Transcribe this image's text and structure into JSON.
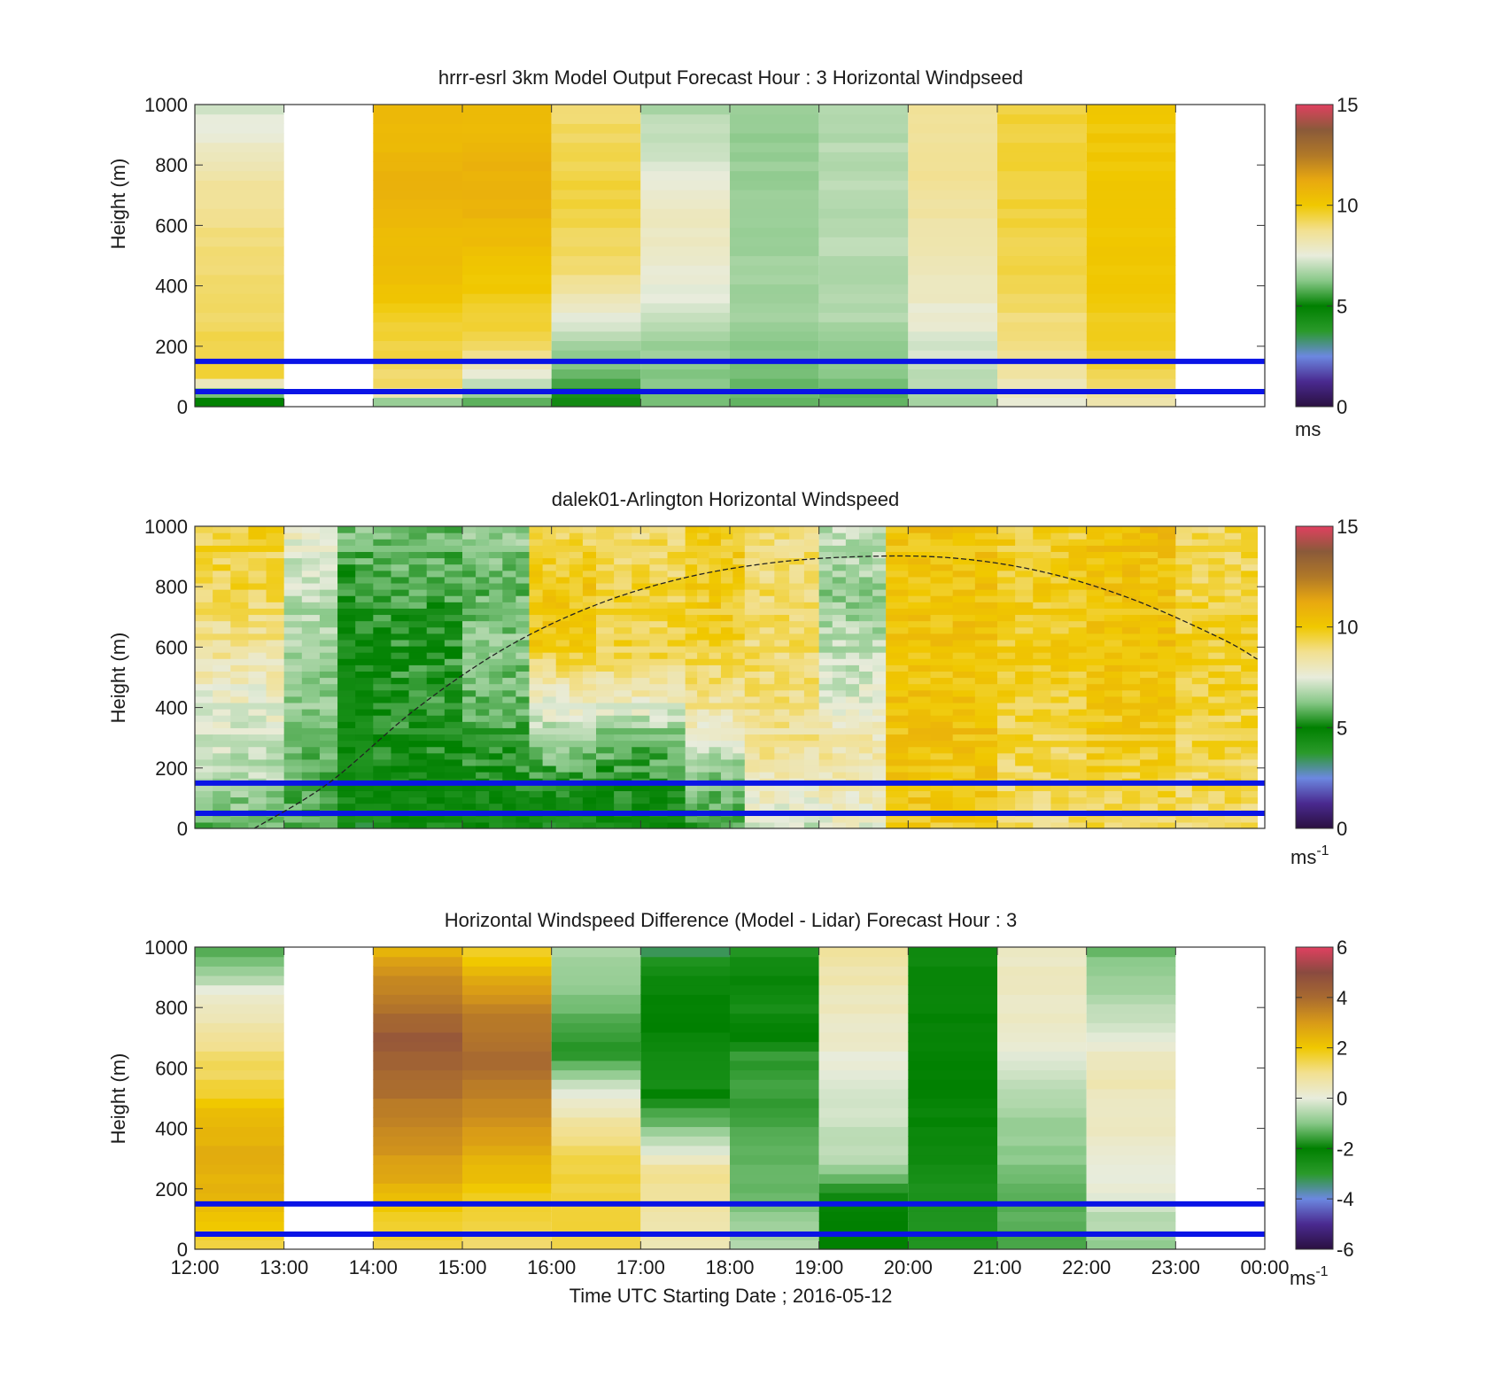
{
  "figure": {
    "xlabel": "Time UTC  Starting Date ; 2016-05-12",
    "x_ticks": [
      "12:00",
      "13:00",
      "14:00",
      "15:00",
      "16:00",
      "17:00",
      "18:00",
      "19:00",
      "20:00",
      "21:00",
      "22:00",
      "23:00",
      "00:00"
    ]
  },
  "colors": {
    "scale_speed": [
      "#2a1040",
      "#4a2a90",
      "#6c88e0",
      "#2a9a2a",
      "#008000",
      "#88c888",
      "#e8ecdc",
      "#f2e090",
      "#f0c800",
      "#e8a810",
      "#b07828",
      "#8a5a3a",
      "#e04060"
    ],
    "scale_diff": [
      "#2a1040",
      "#4a2a90",
      "#6c88e0",
      "#2a9a2a",
      "#008000",
      "#88c888",
      "#e8ecdc",
      "#f2e090",
      "#f0c800",
      "#d89a18",
      "#a86a30",
      "#8a4a40",
      "#e04060"
    ],
    "reference_line": "#0a14e6",
    "missing": "#aaaaaa"
  },
  "chart_data": [
    {
      "type": "heatmap",
      "title": "hrrr-esrl 3km Model Output   Forecast Hour : 3 Horizontal Windpseed",
      "ylabel": "Height (m)",
      "xlim": [
        "12:00",
        "00:00"
      ],
      "ylim": [
        0,
        1000
      ],
      "y_ticks": [
        "0",
        "200",
        "400",
        "600",
        "800",
        "1000"
      ],
      "colorbar": {
        "range": [
          0,
          15
        ],
        "ticks": [
          "0",
          "5",
          "10",
          "15"
        ],
        "unit": "ms"
      },
      "reference_lines_m": [
        150,
        50
      ],
      "columns": [
        {
          "start": "12:00",
          "end": "13:00",
          "profile": [
            [
              0,
              4.5
            ],
            [
              40,
              5.5
            ],
            [
              100,
              9.5
            ],
            [
              300,
              9.2
            ],
            [
              600,
              8.8
            ],
            [
              800,
              8.3
            ],
            [
              900,
              7.6
            ],
            [
              1000,
              7.2
            ]
          ]
        },
        {
          "start": "14:00",
          "end": "15:00",
          "profile": [
            [
              0,
              5.5
            ],
            [
              60,
              9
            ],
            [
              200,
              9.4
            ],
            [
              400,
              10.2
            ],
            [
              700,
              10.9
            ],
            [
              1000,
              10.5
            ]
          ]
        },
        {
          "start": "15:00",
          "end": "16:00",
          "profile": [
            [
              0,
              5.5
            ],
            [
              100,
              7.5
            ],
            [
              200,
              9.2
            ],
            [
              400,
              10
            ],
            [
              700,
              11
            ],
            [
              1000,
              10.5
            ]
          ]
        },
        {
          "start": "16:00",
          "end": "17:00",
          "profile": [
            [
              0,
              5
            ],
            [
              150,
              6.2
            ],
            [
              300,
              7.5
            ],
            [
              450,
              9
            ],
            [
              700,
              9.5
            ],
            [
              1000,
              9
            ]
          ]
        },
        {
          "start": "17:00",
          "end": "18:00",
          "profile": [
            [
              0,
              6
            ],
            [
              200,
              6.5
            ],
            [
              400,
              7.6
            ],
            [
              600,
              8
            ],
            [
              850,
              7.2
            ],
            [
              1000,
              6.7
            ]
          ]
        },
        {
          "start": "18:00",
          "end": "19:00",
          "profile": [
            [
              0,
              5.8
            ],
            [
              300,
              6.6
            ],
            [
              700,
              6.5
            ],
            [
              1000,
              6.4
            ]
          ]
        },
        {
          "start": "19:00",
          "end": "20:00",
          "profile": [
            [
              0,
              5.8
            ],
            [
              300,
              6.8
            ],
            [
              600,
              6.9
            ],
            [
              1000,
              6.8
            ]
          ]
        },
        {
          "start": "20:00",
          "end": "21:00",
          "profile": [
            [
              0,
              6.5
            ],
            [
              200,
              7.3
            ],
            [
              400,
              8
            ],
            [
              700,
              8.6
            ],
            [
              1000,
              8.7
            ]
          ]
        },
        {
          "start": "21:00",
          "end": "22:00",
          "profile": [
            [
              0,
              7.4
            ],
            [
              100,
              8.4
            ],
            [
              400,
              9.3
            ],
            [
              700,
              9.5
            ],
            [
              1000,
              9.5
            ]
          ]
        },
        {
          "start": "22:00",
          "end": "23:00",
          "profile": [
            [
              0,
              8
            ],
            [
              100,
              9.4
            ],
            [
              400,
              10
            ],
            [
              700,
              10
            ],
            [
              1000,
              10
            ]
          ]
        }
      ]
    },
    {
      "type": "heatmap",
      "title": "dalek01-Arlington  Horizontal Windspeed",
      "ylabel": "Height (m)",
      "xlim": [
        "12:00",
        "00:00"
      ],
      "ylim": [
        0,
        1000
      ],
      "y_ticks": [
        "0",
        "200",
        "400",
        "600",
        "800",
        "1000"
      ],
      "colorbar": {
        "range": [
          0,
          15
        ],
        "ticks": [
          "0",
          "5",
          "10",
          "15"
        ],
        "unit": "ms",
        "unit_exponent": "-1"
      },
      "reference_lines_m": [
        150,
        50
      ],
      "data_end": "23:55",
      "boundary_layer_curve": [
        [
          "12:40",
          0
        ],
        [
          "13:30",
          150
        ],
        [
          "14:30",
          400
        ],
        [
          "15:30",
          600
        ],
        [
          "16:30",
          740
        ],
        [
          "17:30",
          830
        ],
        [
          "18:30",
          880
        ],
        [
          "19:30",
          900
        ],
        [
          "20:30",
          895
        ],
        [
          "21:30",
          850
        ],
        [
          "22:30",
          760
        ],
        [
          "23:30",
          630
        ],
        [
          "23:55",
          560
        ]
      ],
      "segments": [
        {
          "start": "12:00",
          "end": "13:00",
          "profile": [
            [
              0,
              5
            ],
            [
              150,
              6
            ],
            [
              400,
              6.8
            ],
            [
              600,
              7.8
            ],
            [
              800,
              8.6
            ],
            [
              1000,
              8.8
            ]
          ]
        },
        {
          "start": "13:00",
          "end": "14:00",
          "profile": [
            [
              0,
              4.8
            ],
            [
              200,
              5.2
            ],
            [
              400,
              5.5
            ],
            [
              600,
              5.8
            ],
            [
              800,
              6.2
            ],
            [
              1000,
              7
            ]
          ]
        },
        {
          "start": "14:00",
          "end": "15:00",
          "profile": [
            [
              0,
              5
            ],
            [
              200,
              5.8
            ],
            [
              400,
              6.1
            ],
            [
              700,
              6.2
            ],
            [
              1000,
              6.8
            ]
          ]
        },
        {
          "start": "15:00",
          "end": "15:45",
          "profile": [
            [
              0,
              5.2
            ],
            [
              200,
              6
            ],
            [
              400,
              6.5
            ],
            [
              600,
              7
            ],
            [
              800,
              6.6
            ],
            [
              1000,
              7.2
            ]
          ]
        },
        {
          "start": "15:45",
          "end": "16:30",
          "profile": [
            [
              0,
              4.8
            ],
            [
              200,
              6.3
            ],
            [
              450,
              8.6
            ],
            [
              600,
              10.4
            ],
            [
              800,
              10.6
            ],
            [
              1000,
              9.8
            ]
          ]
        },
        {
          "start": "16:30",
          "end": "17:30",
          "profile": [
            [
              0,
              5.2
            ],
            [
              300,
              6.6
            ],
            [
              450,
              8.8
            ],
            [
              600,
              10
            ],
            [
              800,
              10
            ],
            [
              1000,
              9.5
            ]
          ]
        },
        {
          "start": "17:30",
          "end": "18:10",
          "profile": [
            [
              0,
              6
            ],
            [
              200,
              7
            ],
            [
              400,
              9
            ],
            [
              700,
              10.3
            ],
            [
              1000,
              10.2
            ]
          ]
        },
        {
          "start": "18:10",
          "end": "19:00",
          "profile": [
            [
              0,
              7.5
            ],
            [
              200,
              8.8
            ],
            [
              400,
              9.3
            ],
            [
              700,
              9.6
            ],
            [
              1000,
              9.3
            ]
          ]
        },
        {
          "start": "19:00",
          "end": "19:45",
          "profile": [
            [
              0,
              8
            ],
            [
              250,
              8.8
            ],
            [
              500,
              7.5
            ],
            [
              800,
              6.8
            ],
            [
              1000,
              7.4
            ]
          ]
        },
        {
          "start": "19:45",
          "end": "21:00",
          "profile": [
            [
              0,
              10.2
            ],
            [
              300,
              10.5
            ],
            [
              600,
              10.4
            ],
            [
              900,
              10.4
            ],
            [
              1000,
              10.5
            ]
          ]
        },
        {
          "start": "21:00",
          "end": "22:00",
          "profile": [
            [
              0,
              9.2
            ],
            [
              300,
              9.6
            ],
            [
              600,
              10
            ],
            [
              900,
              10
            ],
            [
              1000,
              9.8
            ]
          ]
        },
        {
          "start": "22:00",
          "end": "23:00",
          "profile": [
            [
              0,
              9.4
            ],
            [
              300,
              10
            ],
            [
              600,
              10.4
            ],
            [
              900,
              10.3
            ],
            [
              1000,
              10.7
            ]
          ]
        },
        {
          "start": "23:00",
          "end": "23:55",
          "profile": [
            [
              0,
              9.2
            ],
            [
              300,
              9.5
            ],
            [
              600,
              9.8
            ],
            [
              900,
              9.4
            ],
            [
              1000,
              9.3
            ]
          ]
        }
      ]
    },
    {
      "type": "heatmap",
      "title": "Horizontal Windspeed Difference (Model - Lidar) Forecast Hour : 3",
      "ylabel": "Height (m)",
      "xlim": [
        "12:00",
        "00:00"
      ],
      "ylim": [
        0,
        1000
      ],
      "y_ticks": [
        "0",
        "200",
        "400",
        "600",
        "800",
        "1000"
      ],
      "colorbar": {
        "range": [
          -6,
          6
        ],
        "ticks": [
          "-6",
          "-4",
          "-2",
          "0",
          "2",
          "4",
          "6"
        ],
        "unit": "ms",
        "unit_exponent": "-1"
      },
      "reference_lines_m": [
        150,
        50
      ],
      "columns": [
        {
          "start": "12:00",
          "end": "13:00",
          "profile": [
            [
              0,
              1.5
            ],
            [
              200,
              2.5
            ],
            [
              400,
              2.5
            ],
            [
              550,
              1.5
            ],
            [
              700,
              1
            ],
            [
              850,
              0
            ],
            [
              1000,
              -1.5
            ]
          ]
        },
        {
          "start": "14:00",
          "end": "15:00",
          "profile": [
            [
              0,
              1.5
            ],
            [
              100,
              1.8
            ],
            [
              300,
              3
            ],
            [
              500,
              3.8
            ],
            [
              700,
              4.5
            ],
            [
              850,
              3.6
            ],
            [
              1000,
              2.4
            ]
          ]
        },
        {
          "start": "15:00",
          "end": "16:00",
          "profile": [
            [
              0,
              1.2
            ],
            [
              200,
              2
            ],
            [
              400,
              3
            ],
            [
              600,
              4
            ],
            [
              800,
              3.5
            ],
            [
              1000,
              1.5
            ]
          ]
        },
        {
          "start": "16:00",
          "end": "17:00",
          "profile": [
            [
              0,
              1.5
            ],
            [
              300,
              1.6
            ],
            [
              520,
              0
            ],
            [
              650,
              -1.8
            ],
            [
              800,
              -1.2
            ],
            [
              1000,
              -0.6
            ]
          ]
        },
        {
          "start": "17:00",
          "end": "18:00",
          "profile": [
            [
              0,
              0.5
            ],
            [
              250,
              1
            ],
            [
              400,
              -1
            ],
            [
              550,
              -2.5
            ],
            [
              800,
              -2
            ],
            [
              950,
              -2.6
            ],
            [
              1000,
              -3.5
            ]
          ]
        },
        {
          "start": "18:00",
          "end": "19:00",
          "profile": [
            [
              0,
              -0.5
            ],
            [
              200,
              -1.2
            ],
            [
              400,
              -1.5
            ],
            [
              650,
              -1.6
            ],
            [
              800,
              -2.6
            ],
            [
              900,
              -2.2
            ],
            [
              1000,
              -2.8
            ]
          ]
        },
        {
          "start": "19:00",
          "end": "20:00",
          "profile": [
            [
              0,
              -2
            ],
            [
              150,
              -2.2
            ],
            [
              300,
              -0.5
            ],
            [
              600,
              0
            ],
            [
              800,
              0.4
            ],
            [
              1000,
              0.8
            ]
          ]
        },
        {
          "start": "20:00",
          "end": "21:00",
          "profile": [
            [
              0,
              -2.8
            ],
            [
              200,
              -2.6
            ],
            [
              400,
              -2.2
            ],
            [
              700,
              -2
            ],
            [
              1000,
              -2.4
            ]
          ]
        },
        {
          "start": "21:00",
          "end": "22:00",
          "profile": [
            [
              0,
              -1.5
            ],
            [
              200,
              -1.2
            ],
            [
              500,
              -0.6
            ],
            [
              700,
              0.2
            ],
            [
              1000,
              0.4
            ]
          ]
        },
        {
          "start": "22:00",
          "end": "23:00",
          "profile": [
            [
              0,
              -1
            ],
            [
              200,
              0
            ],
            [
              400,
              0.4
            ],
            [
              600,
              0.5
            ],
            [
              800,
              -0.5
            ],
            [
              1000,
              -1.2
            ]
          ]
        }
      ]
    }
  ]
}
